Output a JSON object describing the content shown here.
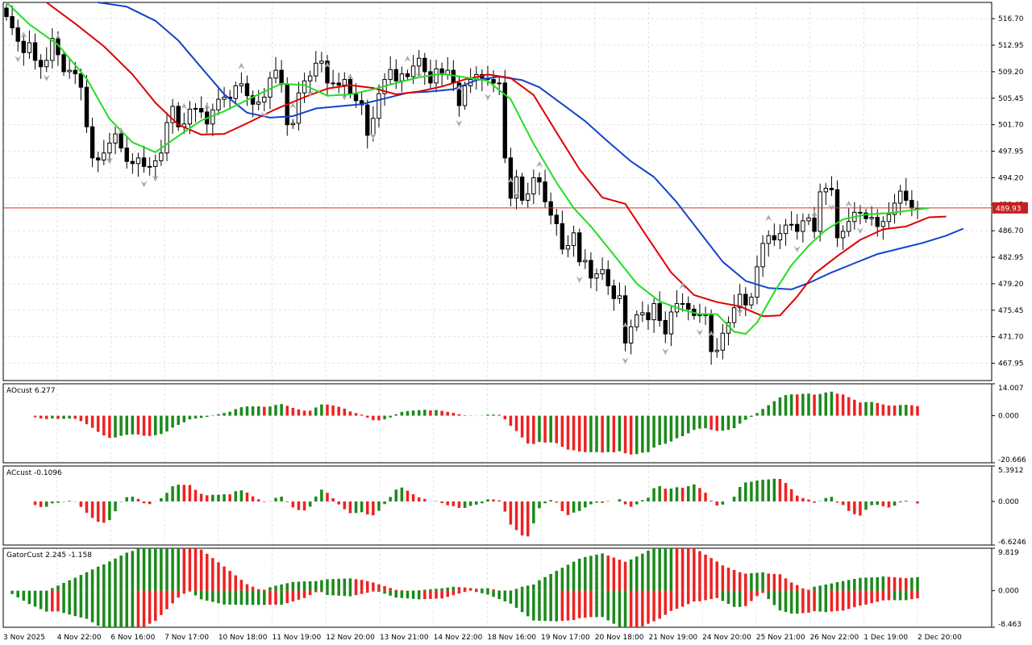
{
  "chart_data": {
    "type": "candlestick",
    "symbol_last_price": "489.93",
    "price_axis": {
      "range": [
        465.5,
        519.0
      ],
      "ticks": [
        "516.70",
        "512.95",
        "509.20",
        "505.45",
        "501.70",
        "497.95",
        "494.20",
        "490.45",
        "486.70",
        "482.95",
        "479.20",
        "475.45",
        "471.70",
        "467.95"
      ]
    },
    "time_axis": [
      "3 Nov 2025",
      "4 Nov 22:00",
      "6 Nov 16:00",
      "7 Nov 17:00",
      "10 Nov 18:00",
      "11 Nov 19:00",
      "12 Nov 20:00",
      "13 Nov 21:00",
      "14 Nov 22:00",
      "18 Nov 16:00",
      "19 Nov 17:00",
      "20 Nov 18:00",
      "21 Nov 19:00",
      "24 Nov 20:00",
      "25 Nov 21:00",
      "26 Nov 22:00",
      "1 Dec 19:00",
      "2 Dec 20:00"
    ],
    "closes": [
      517.0,
      515.4,
      513.5,
      511.9,
      513.3,
      510.8,
      509.9,
      510.8,
      513.9,
      511.6,
      509.2,
      509.4,
      508.9,
      507.0,
      501.4,
      497.0,
      496.7,
      497.7,
      499.1,
      500.4,
      498.4,
      496.5,
      496.2,
      497.0,
      495.8,
      495.8,
      496.6,
      497.7,
      502.0,
      504.3,
      501.4,
      501.8,
      503.9,
      504.0,
      503.5,
      501.8,
      503.8,
      505.3,
      505.6,
      505.4,
      507.2,
      507.5,
      505.8,
      504.6,
      504.9,
      505.6,
      508.3,
      509.4,
      507.4,
      501.7,
      501.9,
      506.2,
      507.9,
      508.6,
      510.4,
      510.7,
      507.6,
      507.6,
      507.3,
      508.1,
      506.0,
      505.1,
      504.5,
      500.2,
      502.6,
      506.1,
      508.1,
      509.5,
      507.9,
      508.9,
      508.5,
      510.0,
      511.1,
      509.2,
      507.6,
      509.6,
      508.8,
      509.4,
      507.6,
      504.4,
      507.2,
      508.1,
      508.8,
      508.3,
      508.1,
      507.6,
      507.6,
      497.0,
      491.3,
      494.3,
      491.0,
      491.9,
      494.2,
      493.6,
      490.8,
      488.9,
      487.7,
      484.1,
      484.6,
      486.4,
      482.3,
      482.5,
      480.0,
      480.6,
      481.2,
      478.9,
      477.1,
      477.5,
      470.8,
      473.1,
      474.8,
      475.1,
      474.1,
      476.4,
      474.0,
      472.1,
      475.2,
      476.4,
      476.4,
      475.6,
      474.7,
      474.8,
      474.8,
      469.6,
      469.8,
      472.2,
      473.7,
      475.8,
      477.7,
      476.2,
      477.3,
      481.6,
      484.9,
      486.0,
      485.4,
      486.3,
      487.5,
      487.6,
      486.6,
      488.1,
      488.5,
      486.6,
      492.2,
      492.7,
      492.5,
      485.7,
      486.6,
      488.0,
      489.3,
      489.2,
      488.4,
      488.6,
      487.3,
      488.0,
      489.0,
      490.6,
      492.3,
      491.0,
      489.9,
      489.9
    ],
    "alligator": {
      "lips_color": "#22dd22",
      "teeth_color": "#dd0000",
      "jaw_color": "#1144cc",
      "lips": [
        {
          "i": 0,
          "v": 519.0
        },
        {
          "i": 4,
          "v": 515.9
        },
        {
          "i": 9,
          "v": 513.0
        },
        {
          "i": 14,
          "v": 508.2
        },
        {
          "i": 18,
          "v": 502.5
        },
        {
          "i": 22,
          "v": 499.2
        },
        {
          "i": 26,
          "v": 497.8
        },
        {
          "i": 30,
          "v": 500.1
        },
        {
          "i": 34,
          "v": 502.3
        },
        {
          "i": 38,
          "v": 503.6
        },
        {
          "i": 42,
          "v": 505.2
        },
        {
          "i": 45,
          "v": 506.4
        },
        {
          "i": 48,
          "v": 507.5
        },
        {
          "i": 52,
          "v": 507.3
        },
        {
          "i": 56,
          "v": 505.8
        },
        {
          "i": 60,
          "v": 506.0
        },
        {
          "i": 64,
          "v": 506.7
        },
        {
          "i": 68,
          "v": 507.6
        },
        {
          "i": 72,
          "v": 508.4
        },
        {
          "i": 76,
          "v": 508.9
        },
        {
          "i": 80,
          "v": 508.4
        },
        {
          "i": 84,
          "v": 507.9
        },
        {
          "i": 88,
          "v": 505.3
        },
        {
          "i": 92,
          "v": 499.0
        },
        {
          "i": 96,
          "v": 493.5
        },
        {
          "i": 99,
          "v": 489.9
        },
        {
          "i": 102,
          "v": 487.3
        },
        {
          "i": 106,
          "v": 483.3
        },
        {
          "i": 110,
          "v": 479.2
        },
        {
          "i": 114,
          "v": 476.7
        },
        {
          "i": 118,
          "v": 475.5
        },
        {
          "i": 121,
          "v": 474.9
        },
        {
          "i": 124,
          "v": 474.9
        },
        {
          "i": 127,
          "v": 472.4
        },
        {
          "i": 129,
          "v": 472.1
        },
        {
          "i": 131,
          "v": 473.7
        },
        {
          "i": 134,
          "v": 478.0
        },
        {
          "i": 137,
          "v": 481.8
        },
        {
          "i": 140,
          "v": 484.6
        },
        {
          "i": 143,
          "v": 486.8
        },
        {
          "i": 146,
          "v": 488.3
        },
        {
          "i": 150,
          "v": 489.0
        },
        {
          "i": 154,
          "v": 489.2
        },
        {
          "i": 158,
          "v": 489.6
        },
        {
          "i": 161,
          "v": 489.9
        }
      ],
      "teeth": [
        {
          "i": 7,
          "v": 519.0
        },
        {
          "i": 12,
          "v": 516.0
        },
        {
          "i": 17,
          "v": 512.8
        },
        {
          "i": 22,
          "v": 508.8
        },
        {
          "i": 26,
          "v": 504.8
        },
        {
          "i": 30,
          "v": 501.7
        },
        {
          "i": 34,
          "v": 500.3
        },
        {
          "i": 38,
          "v": 500.4
        },
        {
          "i": 42,
          "v": 501.9
        },
        {
          "i": 47,
          "v": 503.9
        },
        {
          "i": 52,
          "v": 505.6
        },
        {
          "i": 56,
          "v": 506.8
        },
        {
          "i": 60,
          "v": 507.3
        },
        {
          "i": 64,
          "v": 506.9
        },
        {
          "i": 68,
          "v": 506.0
        },
        {
          "i": 72,
          "v": 506.4
        },
        {
          "i": 76,
          "v": 507.1
        },
        {
          "i": 80,
          "v": 508.1
        },
        {
          "i": 84,
          "v": 508.8
        },
        {
          "i": 88,
          "v": 508.3
        },
        {
          "i": 92,
          "v": 505.9
        },
        {
          "i": 96,
          "v": 500.6
        },
        {
          "i": 100,
          "v": 495.4
        },
        {
          "i": 104,
          "v": 491.4
        },
        {
          "i": 108,
          "v": 490.5
        },
        {
          "i": 112,
          "v": 485.6
        },
        {
          "i": 116,
          "v": 480.8
        },
        {
          "i": 120,
          "v": 477.6
        },
        {
          "i": 124,
          "v": 476.6
        },
        {
          "i": 128,
          "v": 476.0
        },
        {
          "i": 132,
          "v": 474.6
        },
        {
          "i": 135,
          "v": 474.7
        },
        {
          "i": 138,
          "v": 477.4
        },
        {
          "i": 141,
          "v": 480.6
        },
        {
          "i": 145,
          "v": 483.1
        },
        {
          "i": 149,
          "v": 485.4
        },
        {
          "i": 153,
          "v": 486.9
        },
        {
          "i": 157,
          "v": 487.3
        },
        {
          "i": 161,
          "v": 488.6
        },
        {
          "i": 164,
          "v": 488.7
        }
      ],
      "jaw": [
        {
          "i": 16,
          "v": 519.0
        },
        {
          "i": 21,
          "v": 518.4
        },
        {
          "i": 26,
          "v": 516.4
        },
        {
          "i": 30,
          "v": 513.6
        },
        {
          "i": 34,
          "v": 509.8
        },
        {
          "i": 38,
          "v": 506.0
        },
        {
          "i": 42,
          "v": 503.4
        },
        {
          "i": 46,
          "v": 502.7
        },
        {
          "i": 50,
          "v": 502.9
        },
        {
          "i": 54,
          "v": 504.0
        },
        {
          "i": 58,
          "v": 504.3
        },
        {
          "i": 62,
          "v": 504.6
        },
        {
          "i": 66,
          "v": 505.4
        },
        {
          "i": 70,
          "v": 506.2
        },
        {
          "i": 74,
          "v": 506.4
        },
        {
          "i": 78,
          "v": 506.7
        },
        {
          "i": 82,
          "v": 508.0
        },
        {
          "i": 86,
          "v": 508.5
        },
        {
          "i": 90,
          "v": 508.0
        },
        {
          "i": 93,
          "v": 507.0
        },
        {
          "i": 97,
          "v": 504.6
        },
        {
          "i": 101,
          "v": 502.2
        },
        {
          "i": 105,
          "v": 499.3
        },
        {
          "i": 109,
          "v": 496.5
        },
        {
          "i": 113,
          "v": 494.3
        },
        {
          "i": 117,
          "v": 490.7
        },
        {
          "i": 121,
          "v": 486.5
        },
        {
          "i": 125,
          "v": 482.3
        },
        {
          "i": 129,
          "v": 479.6
        },
        {
          "i": 133,
          "v": 478.6
        },
        {
          "i": 137,
          "v": 478.4
        },
        {
          "i": 140,
          "v": 479.3
        },
        {
          "i": 144,
          "v": 480.8
        },
        {
          "i": 148,
          "v": 482.1
        },
        {
          "i": 152,
          "v": 483.4
        },
        {
          "i": 156,
          "v": 484.2
        },
        {
          "i": 160,
          "v": 485.0
        },
        {
          "i": 164,
          "v": 486.0
        },
        {
          "i": 167,
          "v": 487.0
        }
      ]
    },
    "fractal_marker_color": "#aaaaaa",
    "fractals_up": [
      3,
      9,
      20,
      31,
      35,
      41,
      50,
      56,
      60,
      70,
      79,
      88,
      93,
      108,
      118,
      123,
      133,
      141,
      147
    ],
    "fractals_down": [
      2,
      7,
      18,
      24,
      26,
      45,
      53,
      59,
      64,
      72,
      79,
      84,
      89,
      100,
      108,
      115,
      121,
      128,
      138,
      144,
      149
    ],
    "signal_arrow": {
      "type": "up",
      "color": "#33cc33",
      "bar_index": 162
    },
    "current_price_line_color": "#dd3333",
    "panes": [
      {
        "name": "AOcust",
        "label": "AOcust 6.277",
        "range": [
          -20.666,
          14.007
        ],
        "ticks": [
          "14.007",
          "0.000",
          "-20.666"
        ]
      },
      {
        "name": "ACcust",
        "label": "ACcust -0.1096",
        "range": [
          -6.6246,
          5.3912
        ],
        "ticks": [
          "5.3912",
          "0.000",
          "-6.6246"
        ]
      },
      {
        "name": "GatorCust",
        "label": "GatorCust 2.245 -1.158",
        "range": [
          -8.463,
          9.819
        ],
        "ticks": [
          "9.819",
          "0.000",
          "-8.463"
        ]
      }
    ],
    "histogram_up_color": "#1a8a1a",
    "histogram_down_color": "#ee2222"
  }
}
